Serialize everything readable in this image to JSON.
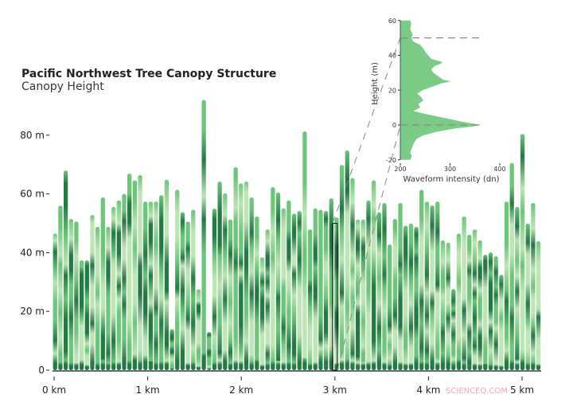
{
  "chart_data": [
    {
      "type": "bar",
      "title": "Pacific Northwest Tree Canopy Structure",
      "subtitle": "Canopy Height",
      "xlabel": "",
      "ylabel": "",
      "x_unit": "km",
      "y_unit": "m",
      "xlim": [
        0,
        5.2
      ],
      "ylim": [
        0,
        95
      ],
      "x_ticks": [
        "0 km",
        "1 km",
        "2 km",
        "3 km",
        "4 km",
        "5 km"
      ],
      "y_ticks": [
        "0",
        "20 m",
        "40 m",
        "60 m",
        "80 m"
      ],
      "heights": [
        46.5,
        56,
        68,
        51.5,
        50.6,
        37.4,
        37.4,
        52.8,
        48.8,
        58.8,
        48.8,
        55.6,
        57.8,
        60,
        66.9,
        64.6,
        66.4,
        57.4,
        57.4,
        57.4,
        59.6,
        64.8,
        14,
        61.4,
        53.8,
        50.6,
        54.6,
        27.5,
        92,
        13,
        55,
        64.2,
        60.2,
        51.3,
        69.1,
        63.6,
        64.2,
        58.8,
        52.3,
        38.4,
        47.9,
        62.3,
        60.5,
        55.1,
        57.8,
        53.3,
        54.2,
        81.3,
        47.9,
        55.1,
        54.6,
        54.2,
        58.5,
        52,
        69.9,
        74.8,
        65.4,
        51.3,
        51.3,
        57.8,
        64.6,
        53.8,
        56.9,
        42.8,
        51.5,
        56.9,
        49.2,
        49.9,
        48.8,
        61.4,
        57.4,
        56.1,
        57.4,
        44.2,
        43.4,
        27.6,
        46.5,
        52.3,
        46.1,
        47.9,
        44.2,
        39.3,
        40.1,
        38.8,
        32.5,
        57.4,
        70.5,
        55.6,
        80.4,
        49.9,
        56.9,
        43.9
      ],
      "highlight_x_km": 3.0,
      "colors": {
        "light": "#b4e3ab",
        "mid": "#5cbf6a",
        "dark": "#0b6a30",
        "gap": "#e8f7e2"
      }
    },
    {
      "type": "area",
      "xlabel": "Waveform intensity (dn)",
      "ylabel": "Height (m)",
      "xlim": [
        200,
        400
      ],
      "ylim": [
        -20,
        60
      ],
      "x_ticks": [
        "200",
        "300",
        "400"
      ],
      "y_ticks": [
        "60",
        "40",
        "20",
        "0",
        "-20"
      ],
      "reference_lines_m": [
        50,
        0
      ],
      "profile": [
        [
          60,
          220
        ],
        [
          58,
          222
        ],
        [
          55,
          220
        ],
        [
          52,
          225
        ],
        [
          50,
          222
        ],
        [
          48,
          226
        ],
        [
          46,
          240
        ],
        [
          44,
          246
        ],
        [
          42,
          250
        ],
        [
          40,
          256
        ],
        [
          38,
          262
        ],
        [
          36,
          286
        ],
        [
          35,
          280
        ],
        [
          34,
          270
        ],
        [
          32,
          262
        ],
        [
          30,
          266
        ],
        [
          28,
          276
        ],
        [
          26,
          286
        ],
        [
          25,
          302
        ],
        [
          24,
          284
        ],
        [
          22,
          265
        ],
        [
          20,
          245
        ],
        [
          18,
          234
        ],
        [
          16,
          242
        ],
        [
          14,
          246
        ],
        [
          12,
          236
        ],
        [
          10,
          240
        ],
        [
          8,
          226
        ],
        [
          6,
          256
        ],
        [
          4,
          290
        ],
        [
          2,
          322
        ],
        [
          0,
          362
        ],
        [
          -1,
          342
        ],
        [
          -2,
          310
        ],
        [
          -4,
          272
        ],
        [
          -6,
          246
        ],
        [
          -8,
          233
        ],
        [
          -10,
          228
        ],
        [
          -12,
          225
        ],
        [
          -14,
          222
        ],
        [
          -16,
          220
        ],
        [
          -18,
          223
        ],
        [
          -20,
          220
        ]
      ],
      "fill_color": "#7ccb86"
    }
  ],
  "watermark": "SCIENCEQ.COM"
}
